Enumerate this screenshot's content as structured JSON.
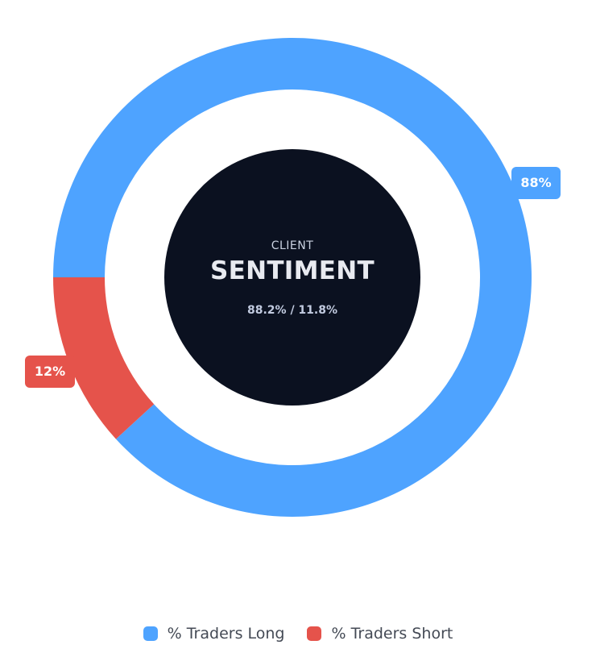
{
  "chart_data": {
    "type": "pie",
    "center": {
      "kicker": "CLIENT",
      "title": "SENTIMENT",
      "subtitle": "88.2% / 11.8%"
    },
    "series": [
      {
        "name": "% Traders Long",
        "value": 88.2,
        "label": "88%",
        "color": "#4ea3ff"
      },
      {
        "name": "% Traders Short",
        "value": 11.8,
        "label": "12%",
        "color": "#e5534b"
      }
    ],
    "legend": "bottom"
  }
}
